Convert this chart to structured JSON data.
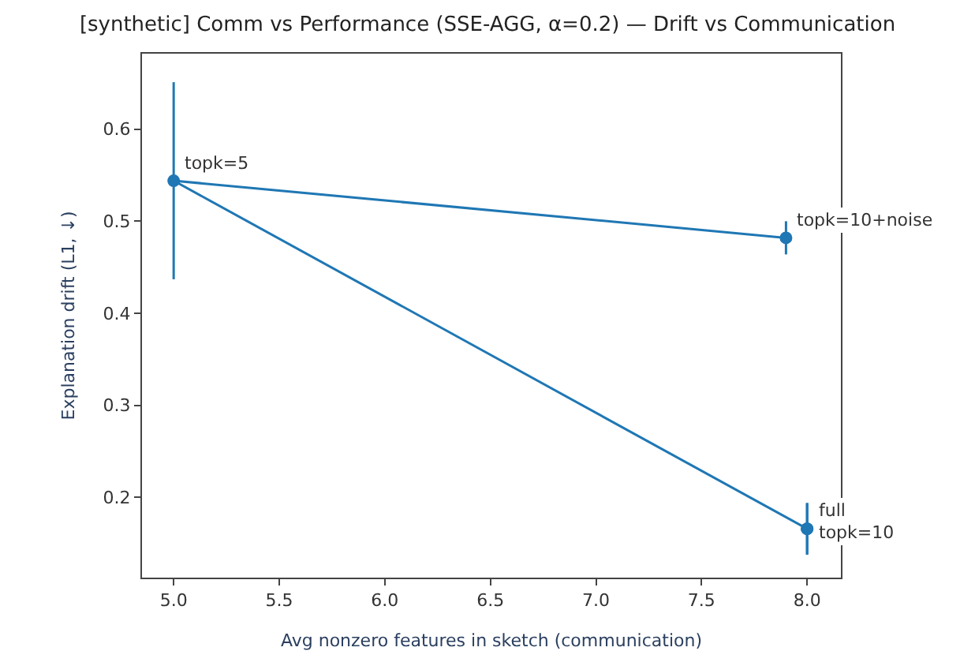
{
  "chart_data": {
    "type": "line",
    "title": "[synthetic] Comm vs Performance (SSE-AGG, α=0.2) — Drift vs Communication",
    "xlabel": "Avg nonzero features in sketch (communication)",
    "ylabel": "Explanation drift (L1, ↓)",
    "series": [
      {
        "color": "#1f77b4",
        "x": [
          7.9,
          5.0,
          8.0,
          8.0
        ],
        "values": [
          0.482,
          0.544,
          0.166,
          0.166
        ],
        "errors": [
          0.018,
          0.107,
          0.028,
          0.028
        ]
      }
    ],
    "annotations": [
      {
        "text": "topk=10+noise",
        "x": 7.9,
        "y": 0.482
      },
      {
        "text": "topk=5",
        "x": 5.0,
        "y": 0.544
      },
      {
        "text": "full",
        "x": 8.0,
        "y": 0.166
      },
      {
        "text": "topk=10",
        "x": 8.0,
        "y": 0.166
      }
    ],
    "xlim": [
      4.85,
      8.16
    ],
    "xticks": [
      {
        "value": 5.0,
        "label": "5.0"
      },
      5.5,
      {
        "value": 6.0,
        "label": "6.0"
      },
      6.5,
      {
        "value": 7.0,
        "label": "7.0"
      },
      7.5,
      {
        "value": 8.0,
        "label": "8.0"
      }
    ],
    "ylim": [
      0.113,
      0.682
    ],
    "yticks": [
      0.2,
      0.3,
      0.4,
      0.5,
      0.6
    ],
    "marker": "circle"
  }
}
